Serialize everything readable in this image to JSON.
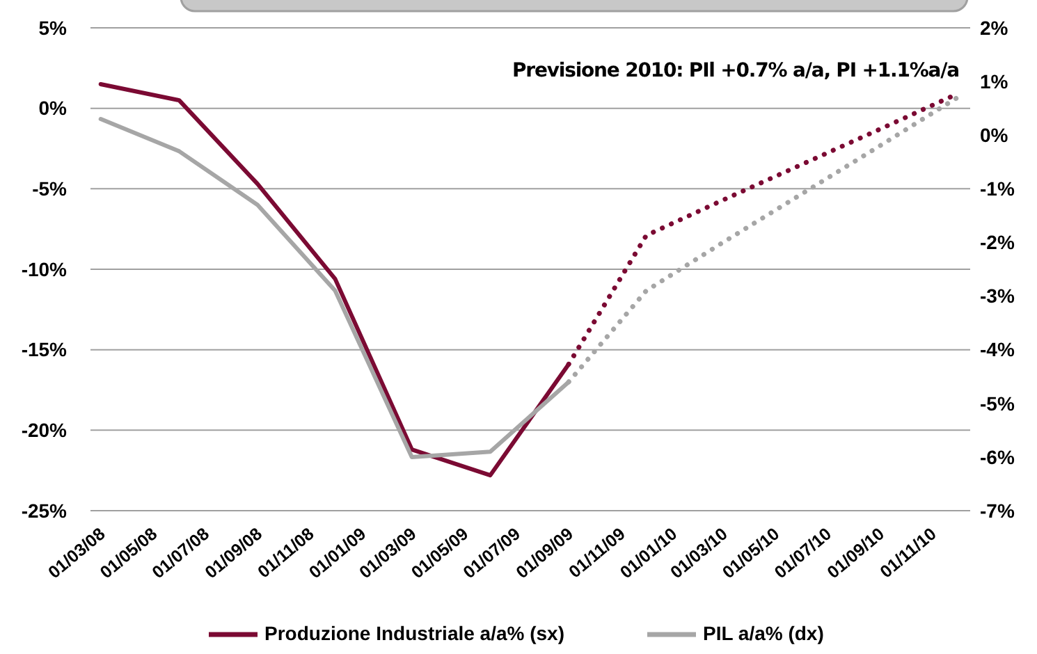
{
  "chart_data": {
    "type": "line",
    "annotations": [
      "Previsione 2010: PIl +0.7% a/a, PI +1.1%a/a"
    ],
    "xlim": [
      "2008-02-18",
      "2010-12-16"
    ],
    "xticks": [
      {
        "value": "2008-03-01",
        "label": "01/03/08"
      },
      {
        "value": "2008-05-01",
        "label": "01/05/08"
      },
      {
        "value": "2008-07-01",
        "label": "01/07/08"
      },
      {
        "value": "2008-09-01",
        "label": "01/09/08"
      },
      {
        "value": "2008-11-01",
        "label": "01/11/08"
      },
      {
        "value": "2009-01-01",
        "label": "01/01/09"
      },
      {
        "value": "2009-03-01",
        "label": "01/03/09"
      },
      {
        "value": "2009-05-01",
        "label": "01/05/09"
      },
      {
        "value": "2009-07-01",
        "label": "01/07/09"
      },
      {
        "value": "2009-09-01",
        "label": "01/09/09"
      },
      {
        "value": "2009-11-01",
        "label": "01/11/09"
      },
      {
        "value": "2010-01-01",
        "label": "01/01/10"
      },
      {
        "value": "2010-03-01",
        "label": "01/03/10"
      },
      {
        "value": "2010-05-01",
        "label": "01/05/10"
      },
      {
        "value": "2010-07-01",
        "label": "01/07/10"
      },
      {
        "value": "2010-09-01",
        "label": "01/09/10"
      },
      {
        "value": "2010-11-01",
        "label": "01/11/10"
      }
    ],
    "ylim": [
      -25,
      5
    ],
    "yticks": [
      {
        "value": 5,
        "label": "5%"
      },
      {
        "value": 0,
        "label": "0%"
      },
      {
        "value": -5,
        "label": "-5%"
      },
      {
        "value": -10,
        "label": "-10%"
      },
      {
        "value": -15,
        "label": "-15%"
      },
      {
        "value": -20,
        "label": "-20%"
      },
      {
        "value": -25,
        "label": "-25%"
      }
    ],
    "y2lim": [
      -7,
      2
    ],
    "y2ticks": [
      {
        "value": 2,
        "label": "2%"
      },
      {
        "value": 1,
        "label": "1%"
      },
      {
        "value": 0,
        "label": "0%"
      },
      {
        "value": -1,
        "label": "-1%"
      },
      {
        "value": -2,
        "label": "-2%"
      },
      {
        "value": -3,
        "label": "-3%"
      },
      {
        "value": -4,
        "label": "-4%"
      },
      {
        "value": -5,
        "label": "-5%"
      },
      {
        "value": -6,
        "label": "-6%"
      },
      {
        "value": -7,
        "label": "-7%"
      }
    ],
    "grid": "y",
    "legend": "bottom",
    "marker": "none",
    "series": [
      {
        "name": "Produzione Industriale a/a% (sx)",
        "color": "#7b0a33",
        "line_style": "solid",
        "x": [
          "2008-03-01",
          "2008-06-01",
          "2008-09-01",
          "2008-12-01",
          "2009-03-01",
          "2009-06-01",
          "2009-09-01"
        ],
        "values": [
          1.5,
          0.5,
          -4.7,
          -10.6,
          -21.2,
          -22.8,
          -15.9
        ]
      },
      {
        "name": "PIL a/a% (dx)",
        "color": "#a6a6a6",
        "line_style": "solid",
        "axis": "y2",
        "x": [
          "2008-03-01",
          "2008-06-01",
          "2008-09-01",
          "2008-12-01",
          "2009-03-01",
          "2009-06-01",
          "2009-09-01"
        ],
        "values": [
          0.3,
          -0.3,
          -1.3,
          -2.9,
          -6.0,
          -5.9,
          -4.6
        ]
      },
      {
        "color": "#7b0a33",
        "line_style": "dotted",
        "x": [
          "2009-09-01",
          "2009-12-01",
          "2010-03-01",
          "2010-06-01",
          "2010-09-01",
          "2010-12-01"
        ],
        "values": [
          -15.9,
          -7.9,
          -5.7,
          -3.5,
          -1.3,
          0.9
        ]
      },
      {
        "color": "#a6a6a6",
        "line_style": "dotted",
        "axis": "y2",
        "x": [
          "2009-09-01",
          "2009-12-01",
          "2010-03-01",
          "2010-06-01",
          "2010-09-01",
          "2010-12-01"
        ],
        "values": [
          -4.6,
          -2.9,
          -2.0,
          -1.1,
          -0.2,
          0.7
        ]
      }
    ]
  }
}
